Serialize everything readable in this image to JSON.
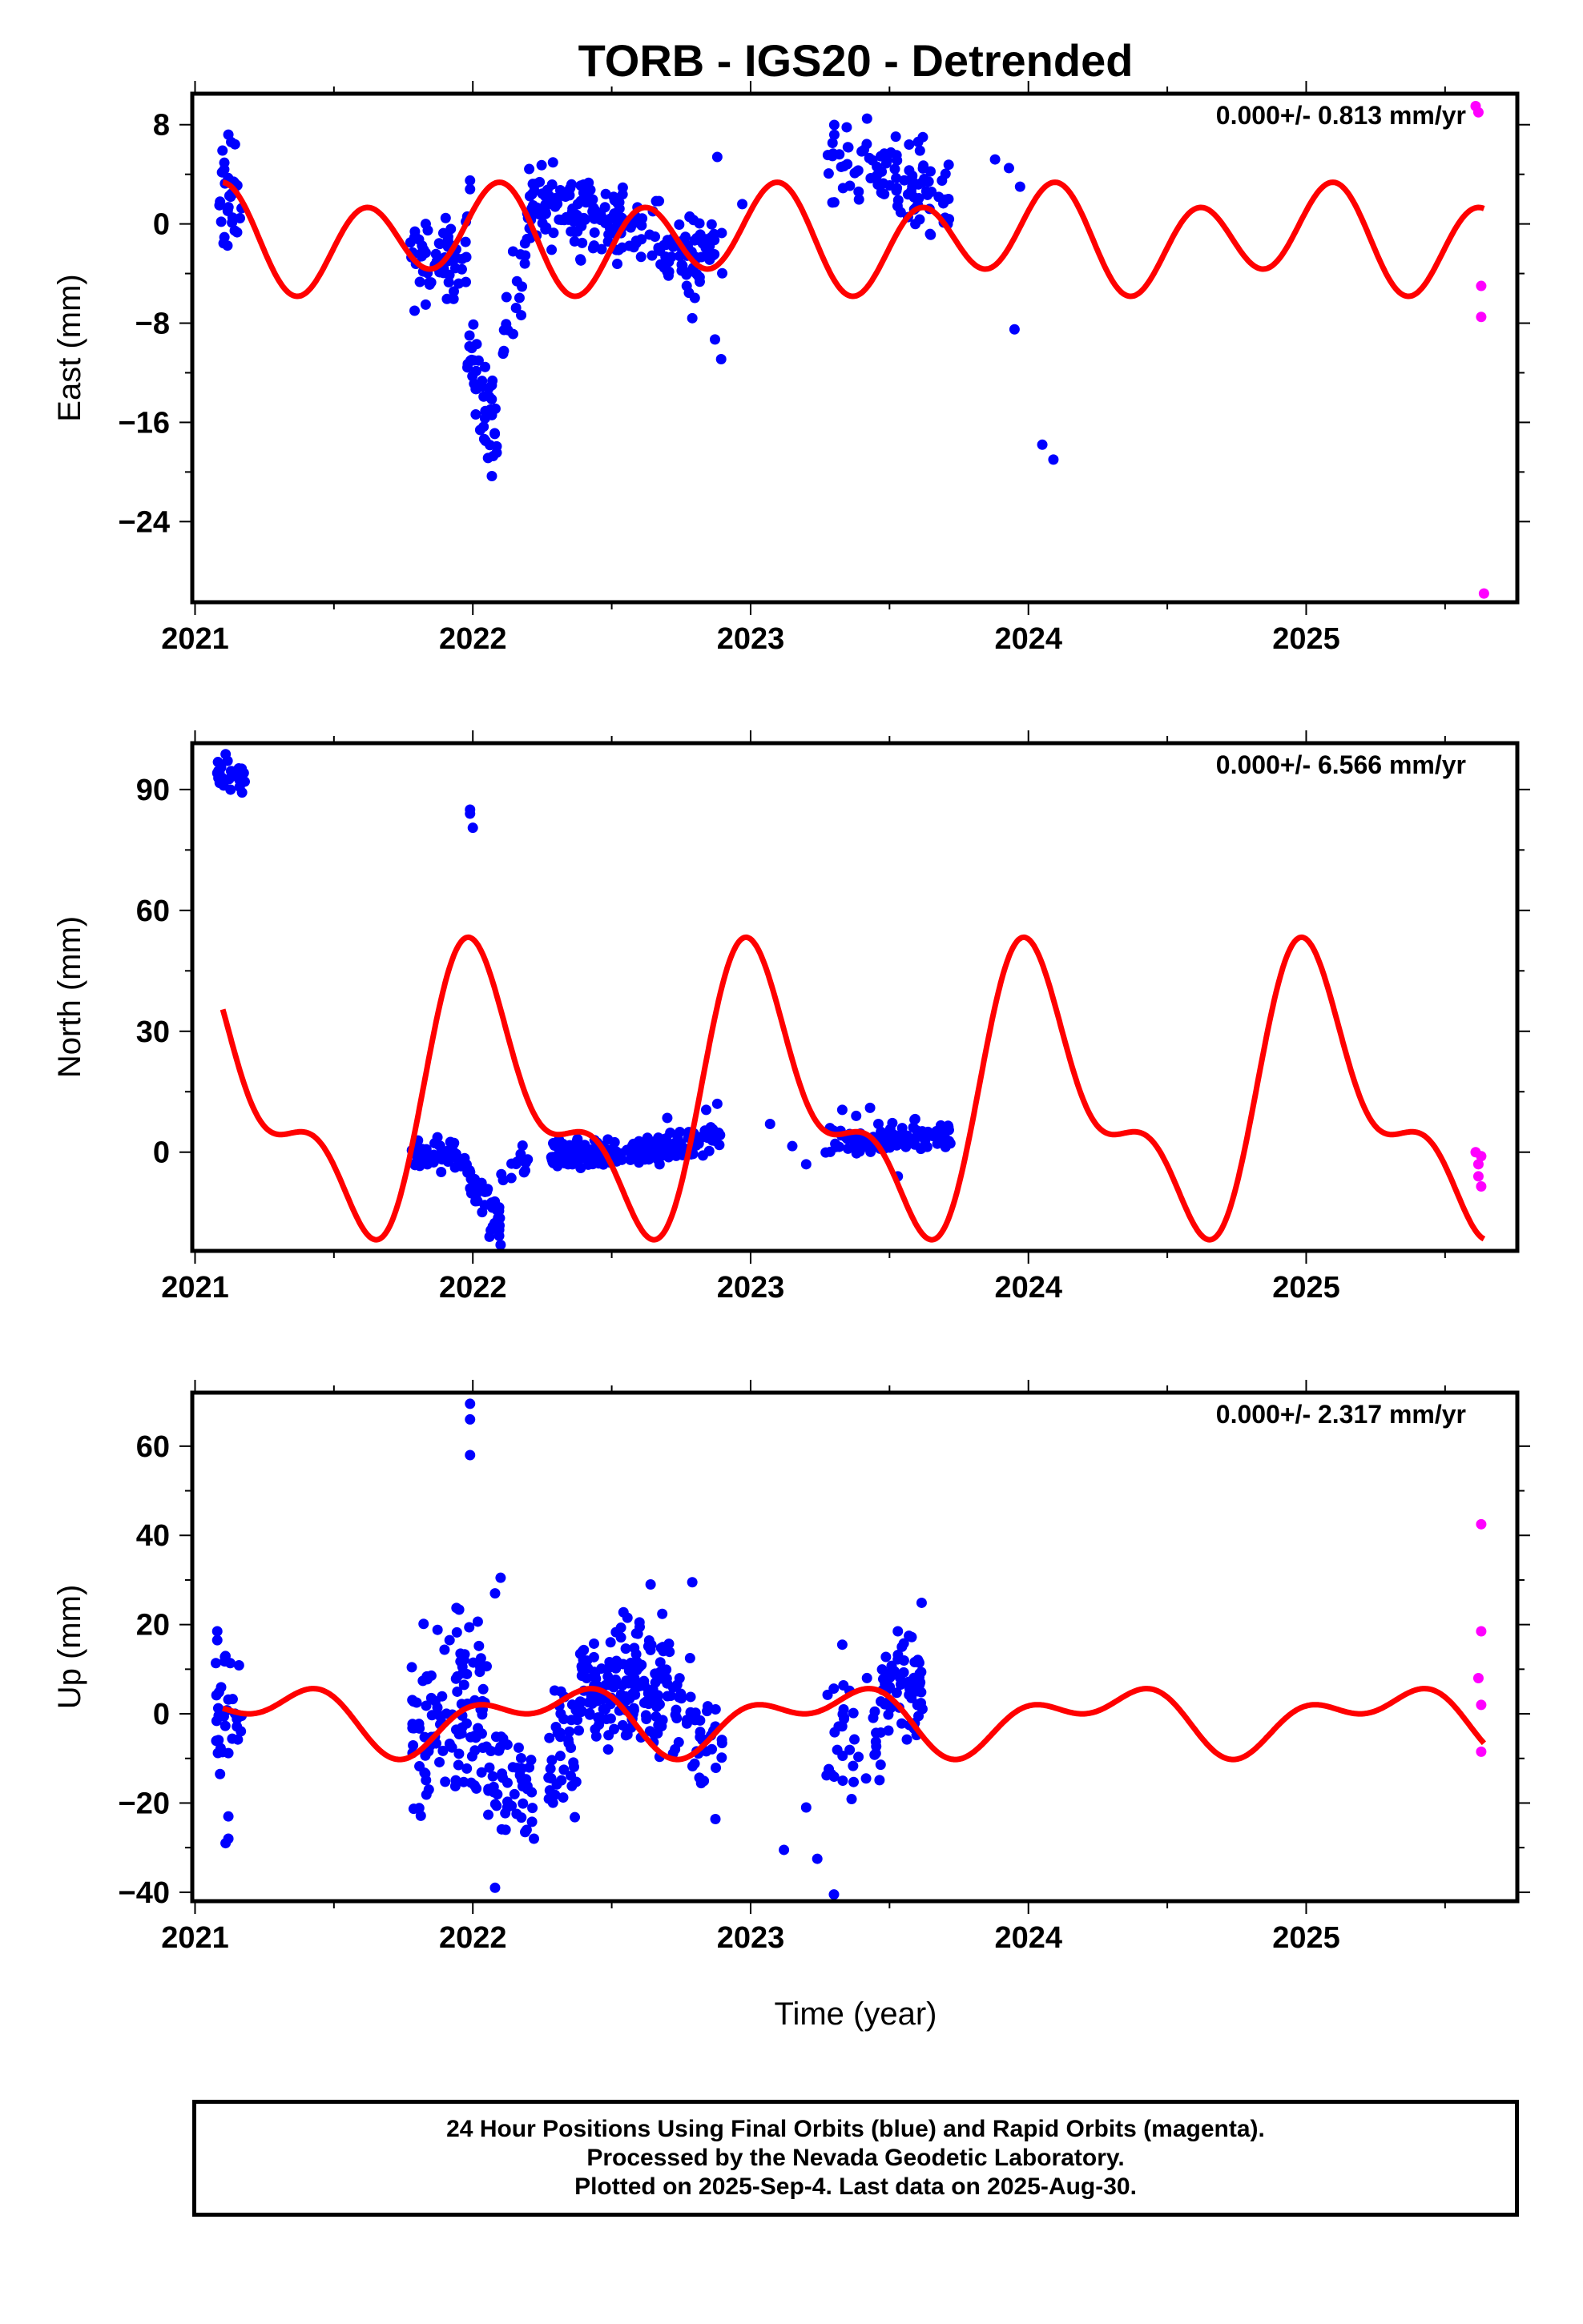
{
  "title": "TORB - IGS20 - Detrended",
  "xlabel": "Time (year)",
  "caption": [
    "24 Hour Positions Using Final Orbits (blue) and Rapid Orbits (magenta).",
    "Processed by the Nevada Geodetic Laboratory.",
    "Plotted on 2025-Sep-4. Last data on 2025-Aug-30."
  ],
  "colors": {
    "final": "#0000ff",
    "rapid": "#ff00ff",
    "model": "#ff0000",
    "frame": "#000000"
  },
  "chart_data": [
    {
      "type": "scatter",
      "panel": "east",
      "ylabel": "East (mm)",
      "rate_text": "0.000+/- 0.813 mm/yr",
      "xlim": [
        2020.99,
        2025.76
      ],
      "ylim": [
        -30.5,
        10.5
      ],
      "xticks": [
        2021,
        2022,
        2023,
        2024,
        2025
      ],
      "xtick_labels": [
        "2021",
        "2022",
        "2023",
        "2024",
        "2025"
      ],
      "yticks": [
        8,
        0,
        -8,
        -16,
        -24
      ],
      "ytick_labels": [
        "8",
        "0",
        "−8",
        "−16",
        "−24"
      ],
      "model": {
        "t0": 2021.1,
        "c": -1.2,
        "a1": 1.5,
        "p1": 0.15,
        "a2": 3.5,
        "p2": -1.35
      },
      "series": [
        {
          "kind": "final",
          "segments": [
            {
              "x": [
                2021.08,
                2021.17
              ],
              "y": [
                1.5,
                1.5
              ],
              "spread": 2.2,
              "n": 30
            },
            {
              "x": [
                2021.77,
                2021.98
              ],
              "y": [
                -3.5,
                -2.5
              ],
              "spread": 1.6,
              "n": 60
            },
            {
              "x": [
                2021.98,
                2022.09
              ],
              "y": [
                -9,
                -18
              ],
              "spread": 2.0,
              "n": 45
            },
            {
              "x": [
                2022.09,
                2022.2
              ],
              "y": [
                -13,
                -1
              ],
              "spread": 2.0,
              "n": 20
            },
            {
              "x": [
                2022.2,
                2022.55
              ],
              "y": [
                2,
                0
              ],
              "spread": 1.5,
              "n": 140
            },
            {
              "x": [
                2022.55,
                2022.87
              ],
              "y": [
                0,
                -3
              ],
              "spread": 1.5,
              "n": 80
            },
            {
              "x": [
                2022.85,
                2022.9
              ],
              "y": [
                -1,
                -5
              ],
              "spread": 3.0,
              "n": 8
            },
            {
              "x": [
                2023.27,
                2023.45
              ],
              "y": [
                5,
                5
              ],
              "spread": 1.5,
              "n": 30
            },
            {
              "x": [
                2023.45,
                2023.72
              ],
              "y": [
                4,
                2
              ],
              "spread": 1.6,
              "n": 70
            }
          ],
          "points": [
            [
              2021.12,
              7.2
            ],
            [
              2021.13,
              6.6
            ],
            [
              2021.98,
              0.6
            ],
            [
              2021.99,
              2.8
            ],
            [
              2021.99,
              3.5
            ],
            [
              2023.88,
              5.2
            ],
            [
              2023.93,
              4.5
            ],
            [
              2023.97,
              3.0
            ],
            [
              2022.88,
              5.4
            ],
            [
              2022.77,
              -5.0
            ],
            [
              2022.79,
              -7.6
            ],
            [
              2022.97,
              1.6
            ],
            [
              2023.62,
              7.0
            ],
            [
              2023.7,
              0.5
            ],
            [
              2024.09,
              -19.0
            ],
            [
              2024.05,
              -17.8
            ],
            [
              2023.95,
              -8.5
            ]
          ]
        },
        {
          "kind": "rapid",
          "segments": [],
          "points": [
            [
              2025.61,
              9.5
            ],
            [
              2025.62,
              9.0
            ],
            [
              2025.63,
              -5.0
            ],
            [
              2025.63,
              -7.5
            ],
            [
              2025.64,
              -29.8
            ]
          ]
        }
      ]
    },
    {
      "type": "scatter",
      "panel": "north",
      "ylabel": "North (mm)",
      "rate_text": "0.000+/- 6.566 mm/yr",
      "xlim": [
        2020.99,
        2025.76
      ],
      "ylim": [
        -24.5,
        101.5
      ],
      "xticks": [
        2021,
        2022,
        2023,
        2024,
        2025
      ],
      "xtick_labels": [
        "2021",
        "2022",
        "2023",
        "2024",
        "2025"
      ],
      "yticks": [
        90,
        60,
        30,
        0
      ],
      "ytick_labels": [
        "90",
        "60",
        "30",
        "0"
      ],
      "model": {
        "t0": 2021.1,
        "c": 12.0,
        "a1": 29.0,
        "p1": -0.25,
        "a2": 15.0,
        "p2": 0.55
      },
      "series": [
        {
          "kind": "final",
          "segments": [
            {
              "x": [
                2021.07,
                2021.18
              ],
              "y": [
                94,
                94
              ],
              "spread": 2.2,
              "n": 30
            },
            {
              "x": [
                2021.78,
                2021.98
              ],
              "y": [
                -0.5,
                -1.5
              ],
              "spread": 1.8,
              "n": 55
            },
            {
              "x": [
                2021.98,
                2022.1
              ],
              "y": [
                -7,
                -18
              ],
              "spread": 2.5,
              "n": 40
            },
            {
              "x": [
                2022.1,
                2022.2
              ],
              "y": [
                -8,
                -1
              ],
              "spread": 1.8,
              "n": 15
            },
            {
              "x": [
                2022.28,
                2022.65
              ],
              "y": [
                -1,
                0
              ],
              "spread": 1.8,
              "n": 140
            },
            {
              "x": [
                2022.65,
                2022.9
              ],
              "y": [
                0,
                4
              ],
              "spread": 1.8,
              "n": 70
            },
            {
              "x": [
                2023.27,
                2023.45
              ],
              "y": [
                3,
                2.5
              ],
              "spread": 1.8,
              "n": 30
            },
            {
              "x": [
                2023.45,
                2023.72
              ],
              "y": [
                3,
                4
              ],
              "spread": 1.8,
              "n": 75
            }
          ],
          "points": [
            [
              2021.99,
              84.0
            ],
            [
              2021.99,
              85.0
            ],
            [
              2022.0,
              80.5
            ],
            [
              2022.1,
              -23.0
            ],
            [
              2022.06,
              -21.0
            ],
            [
              2022.7,
              8.5
            ],
            [
              2022.84,
              10.5
            ],
            [
              2022.88,
              12.0
            ],
            [
              2023.07,
              7.0
            ],
            [
              2023.33,
              10.5
            ],
            [
              2023.38,
              9.0
            ],
            [
              2023.43,
              11.0
            ],
            [
              2023.46,
              7.0
            ],
            [
              2023.53,
              -6.0
            ],
            [
              2023.15,
              1.5
            ],
            [
              2023.2,
              -3.0
            ]
          ]
        },
        {
          "kind": "rapid",
          "segments": [],
          "points": [
            [
              2025.61,
              0.0
            ],
            [
              2025.62,
              -3.0
            ],
            [
              2025.62,
              -6.0
            ],
            [
              2025.63,
              -8.5
            ],
            [
              2025.63,
              -1.0
            ]
          ]
        }
      ]
    },
    {
      "type": "scatter",
      "panel": "up",
      "ylabel": "Up (mm)",
      "rate_text": "0.000+/- 2.317 mm/yr",
      "xlim": [
        2020.99,
        2025.76
      ],
      "ylim": [
        -42,
        72
      ],
      "xticks": [
        2021,
        2022,
        2023,
        2024,
        2025
      ],
      "xtick_labels": [
        "2021",
        "2022",
        "2023",
        "2024",
        "2025"
      ],
      "yticks": [
        60,
        40,
        20,
        0,
        -20,
        -40
      ],
      "ytick_labels": [
        "60",
        "40",
        "20",
        "0",
        "−20",
        "−40"
      ],
      "model": {
        "t0": 2021.1,
        "c": -1.0,
        "a1": 5.5,
        "p1": -1.75,
        "a2": 4.0,
        "p2": 0.35
      },
      "series": [
        {
          "kind": "final",
          "segments": [
            {
              "x": [
                2021.07,
                2021.17
              ],
              "y": [
                2,
                2
              ],
              "spread": 7.0,
              "n": 30
            },
            {
              "x": [
                2021.78,
                2022.05
              ],
              "y": [
                -2,
                3
              ],
              "spread": 10.0,
              "n": 110
            },
            {
              "x": [
                2022.05,
                2022.22
              ],
              "y": [
                -14,
                -16
              ],
              "spread": 7.0,
              "n": 50
            },
            {
              "x": [
                2022.27,
                2022.38
              ],
              "y": [
                -14,
                -5
              ],
              "spread": 8.0,
              "n": 40
            },
            {
              "x": [
                2022.38,
                2022.72
              ],
              "y": [
                5,
                7
              ],
              "spread": 7.0,
              "n": 160
            },
            {
              "x": [
                2022.72,
                2022.9
              ],
              "y": [
                -2,
                -6
              ],
              "spread": 7.0,
              "n": 45
            },
            {
              "x": [
                2023.27,
                2023.45
              ],
              "y": [
                -3,
                -5
              ],
              "spread": 8.0,
              "n": 30
            },
            {
              "x": [
                2023.45,
                2023.62
              ],
              "y": [
                0,
                8
              ],
              "spread": 7.0,
              "n": 70
            }
          ],
          "points": [
            [
              2021.99,
              69.5
            ],
            [
              2021.99,
              66.0
            ],
            [
              2021.99,
              58.0
            ],
            [
              2021.11,
              -29.0
            ],
            [
              2021.12,
              -28.0
            ],
            [
              2021.12,
              -23.0
            ],
            [
              2021.09,
              -13.5
            ],
            [
              2021.08,
              18.5
            ],
            [
              2021.08,
              16.5
            ],
            [
              2023.12,
              -30.5
            ],
            [
              2023.24,
              -32.5
            ],
            [
              2023.3,
              -40.5
            ],
            [
              2023.2,
              -21.0
            ],
            [
              2023.33,
              15.5
            ],
            [
              2023.53,
              18.5
            ],
            [
              2023.57,
              17.5
            ],
            [
              2022.1,
              30.5
            ],
            [
              2022.08,
              27.0
            ],
            [
              2022.08,
              -39.0
            ],
            [
              2022.64,
              29.0
            ],
            [
              2022.79,
              29.5
            ],
            [
              2022.22,
              -28.0
            ],
            [
              2022.6,
              20.5
            ]
          ]
        },
        {
          "kind": "rapid",
          "segments": [],
          "points": [
            [
              2025.63,
              42.5
            ],
            [
              2025.63,
              18.5
            ],
            [
              2025.62,
              8.0
            ],
            [
              2025.63,
              2.0
            ],
            [
              2025.63,
              -8.5
            ]
          ]
        }
      ]
    }
  ]
}
